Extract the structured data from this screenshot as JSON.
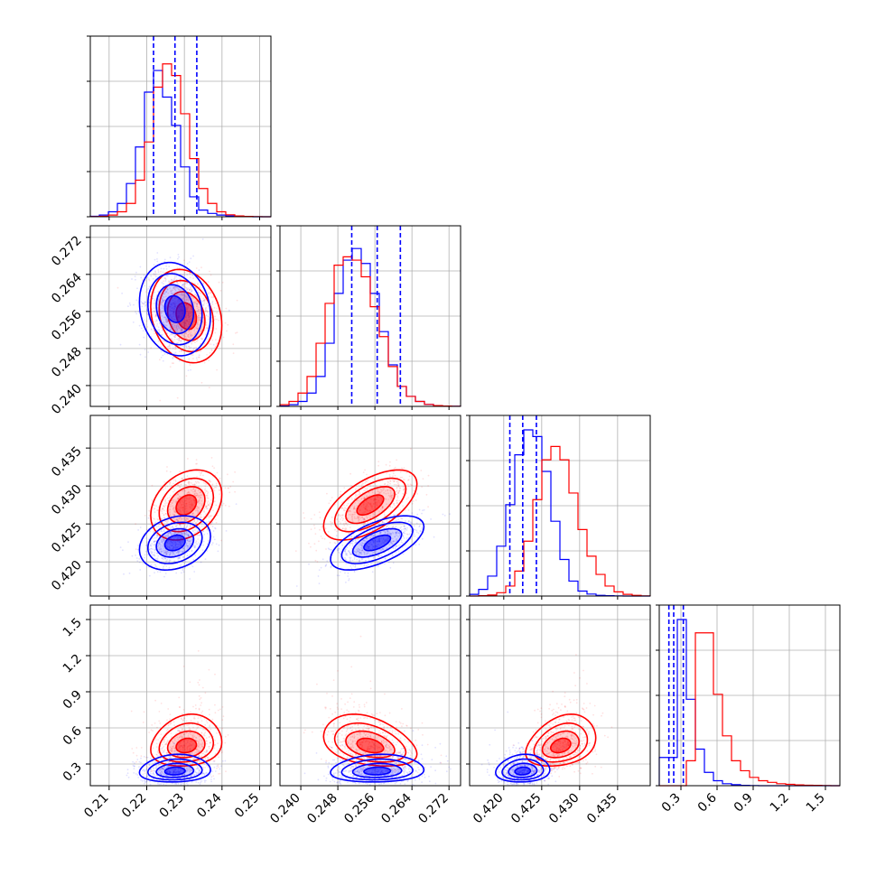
{
  "chart_data": {
    "type": "corner",
    "colors": {
      "series_a": "#0000ff",
      "series_b": "#ff0000",
      "grid": "#b0b0b0"
    },
    "grid": true,
    "params": [
      {
        "range": [
          0.205,
          0.253
        ],
        "ticks": [
          0.21,
          0.22,
          0.23,
          0.24,
          0.25
        ],
        "tick_labels": [
          "0.21",
          "0.22",
          "0.23",
          "0.24",
          "0.25"
        ]
      },
      {
        "range": [
          0.2355,
          0.2745
        ],
        "ticks": [
          0.24,
          0.248,
          0.256,
          0.264,
          0.272
        ],
        "tick_labels": [
          "0.240",
          "0.248",
          "0.256",
          "0.264",
          "0.272"
        ]
      },
      {
        "range": [
          0.4155,
          0.4393
        ],
        "ticks": [
          0.42,
          0.425,
          0.43,
          0.435
        ],
        "tick_labels": [
          "0.420",
          "0.425",
          "0.430",
          "0.435"
        ]
      },
      {
        "range": [
          0.12,
          1.62
        ],
        "ticks": [
          0.3,
          0.6,
          0.9,
          1.2,
          1.5
        ],
        "tick_labels": [
          "0.3",
          "0.6",
          "0.9",
          "1.2",
          "1.5"
        ]
      }
    ],
    "series": [
      {
        "color": "#0000ff",
        "mean": [
          0.2275,
          0.2565,
          0.4225,
          0.24
        ],
        "std": [
          0.0045,
          0.0048,
          0.0017,
          0.045
        ],
        "corr": {
          "0-1": -0.15,
          "0-2": 0.25,
          "0-3": 0.1,
          "1-2": 0.6,
          "1-3": 0.1,
          "2-3": 0.1
        },
        "quantiles": [
          [
            0.2218,
            0.2275,
            0.2333
          ],
          [
            0.251,
            0.2565,
            0.2615
          ],
          [
            0.4208,
            0.4225,
            0.4243
          ],
          [
            0.2,
            0.24,
            0.32
          ]
        ],
        "hist": [
          {
            "edges": [
              0.205,
              0.2235
            ],
            "note": ""
          }
        ]
      },
      {
        "color": "#ff0000",
        "mean": [
          0.2305,
          0.255,
          0.4275,
          0.45
        ],
        "std": [
          0.0045,
          0.0048,
          0.0022,
          0.11
        ],
        "corr": {
          "0-1": -0.2,
          "0-2": 0.3,
          "0-3": 0.15,
          "1-2": 0.6,
          "1-3": -0.35,
          "2-3": 0.3
        },
        "quantiles": []
      }
    ],
    "histograms": {
      "bins": 20,
      "blue": [
        [
          0.003,
          0.01,
          0.03,
          0.08,
          0.2,
          0.42,
          0.75,
          0.88,
          0.72,
          0.55,
          0.3,
          0.12,
          0.04,
          0.02,
          0.01,
          0.005,
          0.002,
          0.001,
          0.0,
          0.0
        ],
        [
          0.002,
          0.01,
          0.03,
          0.08,
          0.18,
          0.38,
          0.68,
          0.88,
          0.95,
          0.86,
          0.68,
          0.45,
          0.25,
          0.12,
          0.06,
          0.03,
          0.012,
          0.005,
          0.002,
          0.001
        ],
        [
          0.01,
          0.04,
          0.12,
          0.3,
          0.55,
          0.85,
          1.0,
          0.96,
          0.75,
          0.45,
          0.22,
          0.09,
          0.03,
          0.012,
          0.004,
          0.002,
          0.001,
          0.0,
          0.0,
          0.0
        ],
        [
          0.17,
          0.17,
          1.0,
          0.52,
          0.22,
          0.08,
          0.03,
          0.012,
          0.006,
          0.002,
          0.001,
          0.0,
          0.0,
          0.0,
          0.0,
          0.0,
          0.0,
          0.0,
          0.0,
          0.0
        ]
      ],
      "red": [
        [
          0.001,
          0.003,
          0.01,
          0.03,
          0.08,
          0.22,
          0.45,
          0.78,
          0.92,
          0.85,
          0.62,
          0.35,
          0.17,
          0.08,
          0.03,
          0.012,
          0.005,
          0.002,
          0.001,
          0.0
        ],
        [
          0.01,
          0.03,
          0.08,
          0.18,
          0.38,
          0.62,
          0.85,
          0.9,
          0.88,
          0.78,
          0.6,
          0.42,
          0.24,
          0.12,
          0.06,
          0.03,
          0.012,
          0.005,
          0.002,
          0.001
        ],
        [
          0.0,
          0.002,
          0.006,
          0.02,
          0.06,
          0.15,
          0.33,
          0.58,
          0.82,
          0.9,
          0.82,
          0.62,
          0.4,
          0.24,
          0.13,
          0.06,
          0.025,
          0.01,
          0.004,
          0.001
        ],
        [
          0.0,
          0.0,
          0.0,
          0.15,
          0.92,
          0.92,
          0.55,
          0.3,
          0.15,
          0.09,
          0.05,
          0.03,
          0.02,
          0.012,
          0.008,
          0.005,
          0.003,
          0.002,
          0.001,
          0.0
        ]
      ]
    }
  }
}
